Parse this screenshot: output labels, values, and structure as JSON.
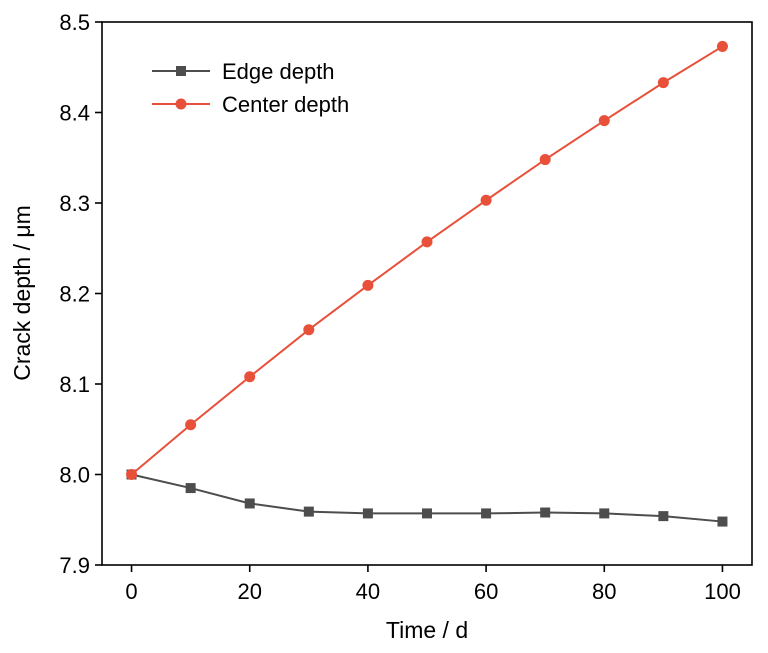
{
  "chart_data": {
    "type": "line",
    "title": "",
    "xlabel": "Time / d",
    "ylabel": "Crack depth / μm",
    "xlim": [
      -5,
      105
    ],
    "ylim": [
      7.9,
      8.5
    ],
    "grid": false,
    "legend_position": "top-left",
    "x_ticks": [
      "0",
      "20",
      "40",
      "60",
      "80",
      "100"
    ],
    "y_ticks": [
      "7.9",
      "8.0",
      "8.1",
      "8.2",
      "8.3",
      "8.4",
      "8.5"
    ],
    "x": [
      0,
      10,
      20,
      30,
      40,
      50,
      60,
      70,
      80,
      90,
      100
    ],
    "series": [
      {
        "name": "Edge depth",
        "marker": "square",
        "color": "#4d4d4d",
        "values": [
          8.0,
          7.985,
          7.968,
          7.959,
          7.957,
          7.957,
          7.957,
          7.958,
          7.957,
          7.954,
          7.948
        ]
      },
      {
        "name": "Center depth",
        "marker": "circle",
        "color": "#e8503a",
        "values": [
          8.0,
          8.055,
          8.108,
          8.16,
          8.209,
          8.257,
          8.303,
          8.348,
          8.391,
          8.433,
          8.473
        ]
      }
    ]
  }
}
